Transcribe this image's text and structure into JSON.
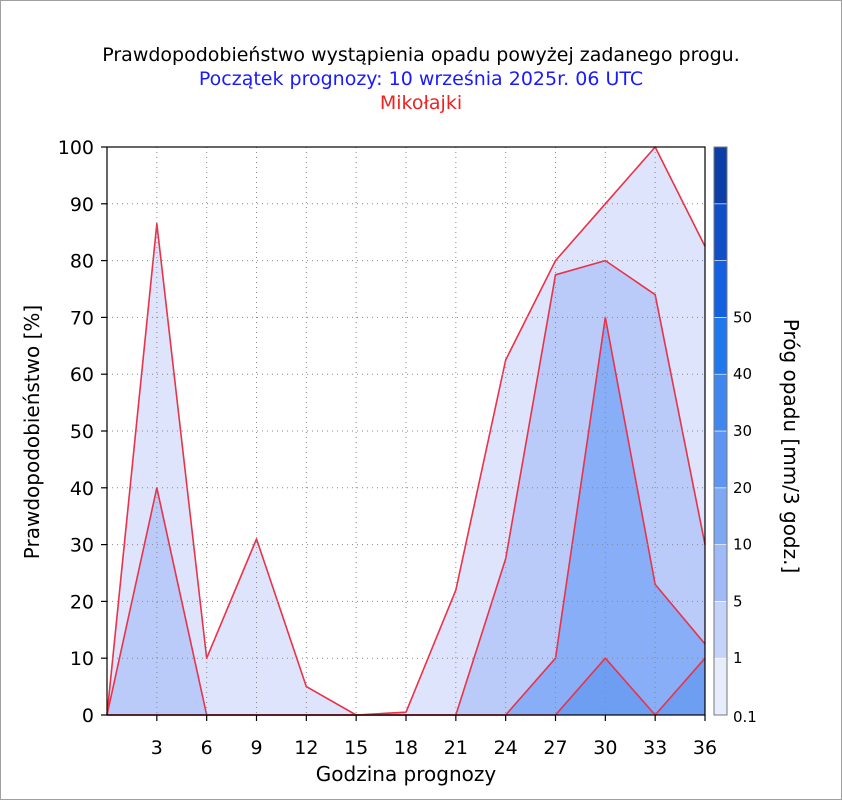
{
  "chart_data": {
    "type": "area",
    "title": "Prawdopodobieństwo wystąpienia opadu powyżej zadanego progu.",
    "subtitle": "Początek prognozy: 10 września 2025r. 06 UTC",
    "location": "Mikołajki",
    "xlabel": "Godzina prognozy",
    "ylabel": "Prawdopodobieństwo [%]",
    "colorbar_label": "Próg opadu [mm/3 godz.]",
    "x": [
      0,
      3,
      6,
      9,
      12,
      15,
      18,
      21,
      24,
      27,
      30,
      33,
      36
    ],
    "x_ticks": [
      3,
      6,
      9,
      12,
      15,
      18,
      21,
      24,
      27,
      30,
      33,
      36
    ],
    "y_ticks": [
      0,
      10,
      20,
      30,
      40,
      50,
      60,
      70,
      80,
      90,
      100
    ],
    "xlim": [
      0,
      36
    ],
    "ylim": [
      0,
      100
    ],
    "grid": true,
    "series": [
      {
        "threshold": 0.1,
        "color": "#dde4fb",
        "values": [
          0,
          86.5,
          10,
          31,
          5,
          0,
          0.5,
          22,
          62.5,
          80,
          90,
          100,
          82.5
        ]
      },
      {
        "threshold": 1,
        "color": "#bacbf9",
        "values": [
          0,
          40,
          0,
          0,
          0,
          0,
          0,
          0,
          27.5,
          77.5,
          80,
          74,
          30
        ]
      },
      {
        "threshold": 5,
        "color": "#87aef6",
        "values": [
          0,
          0,
          0,
          0,
          0,
          0,
          0,
          0,
          0,
          10,
          70,
          23,
          12.5
        ]
      },
      {
        "threshold": 10,
        "color": "#6d9ef2",
        "values": [
          0,
          0,
          0,
          0,
          0,
          0,
          0,
          0,
          0,
          0,
          10,
          0,
          10
        ]
      }
    ],
    "colorbar": {
      "levels": [
        "0.1",
        "1",
        "5",
        "10",
        "20",
        "30",
        "40",
        "50"
      ],
      "colors": [
        "#e8edfc",
        "#c4d3fa",
        "#9fbaf7",
        "#7fa8f4",
        "#5e95f2",
        "#3f87ef",
        "#1f79ec",
        "#1360e0",
        "#0f4fc8",
        "#0b3ea6"
      ]
    }
  }
}
